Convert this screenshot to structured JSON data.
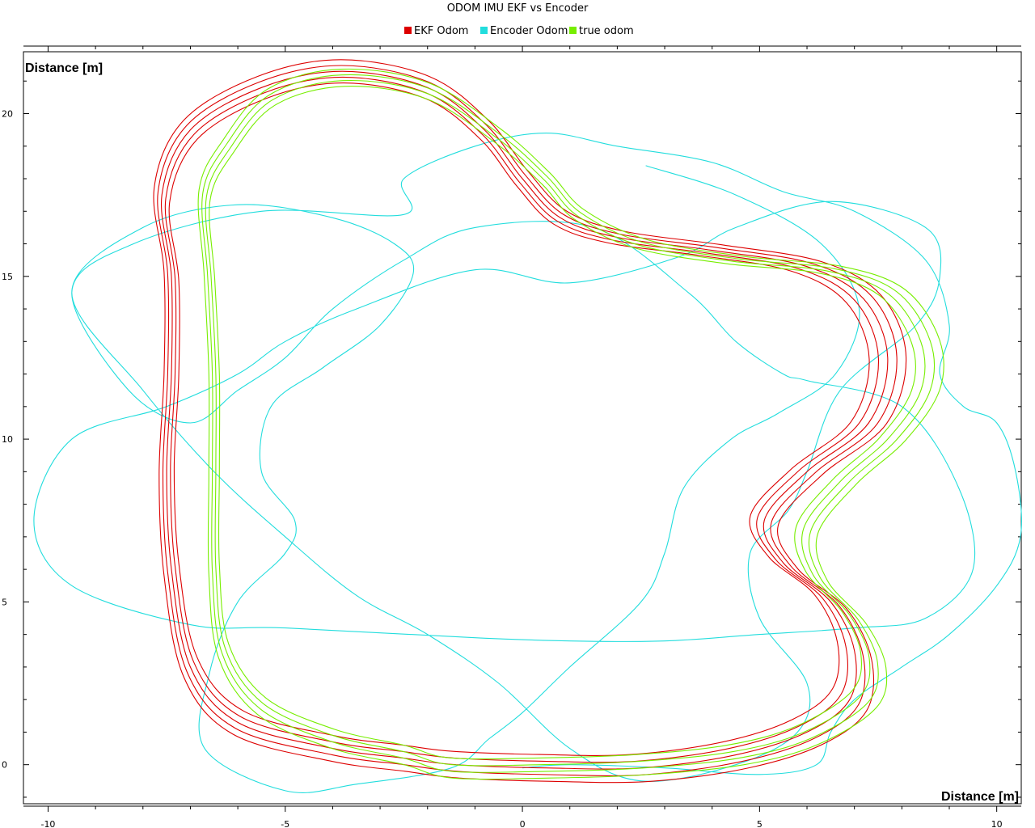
{
  "chart_data": {
    "type": "line",
    "title": "ODOM IMU EKF vs Encoder",
    "xlabel": "Distance [m]",
    "ylabel": "Distance [m]",
    "xlim": [
      -10.4,
      10.5
    ],
    "ylim": [
      -1.2,
      21.9
    ],
    "xticks": [
      -10,
      -5,
      0,
      5,
      10
    ],
    "yticks": [
      0,
      5,
      10,
      15,
      20
    ],
    "grid": false,
    "legend": "top-center",
    "series": [
      {
        "name": "EKF Odom",
        "color": "#dd0000",
        "laps": 5,
        "points": [
          [
            -1.4,
            0.0
          ],
          [
            0.5,
            -0.1
          ],
          [
            2.5,
            -0.1
          ],
          [
            4.5,
            0.3
          ],
          [
            6.0,
            1.0
          ],
          [
            6.9,
            2.0
          ],
          [
            7.0,
            3.5
          ],
          [
            6.5,
            5.0
          ],
          [
            5.5,
            6.2
          ],
          [
            5.1,
            7.5
          ],
          [
            6.0,
            9.0
          ],
          [
            7.3,
            10.5
          ],
          [
            7.7,
            12.5
          ],
          [
            7.2,
            14.3
          ],
          [
            6.0,
            15.3
          ],
          [
            4.0,
            15.8
          ],
          [
            2.0,
            16.2
          ],
          [
            0.8,
            16.8
          ],
          [
            0.0,
            18.0
          ],
          [
            -0.8,
            19.5
          ],
          [
            -2.0,
            20.8
          ],
          [
            -3.8,
            21.3
          ],
          [
            -5.5,
            20.8
          ],
          [
            -7.0,
            19.5
          ],
          [
            -7.6,
            17.5
          ],
          [
            -7.4,
            15.0
          ],
          [
            -7.4,
            12.0
          ],
          [
            -7.5,
            9.0
          ],
          [
            -7.4,
            6.0
          ],
          [
            -7.0,
            3.0
          ],
          [
            -6.0,
            1.3
          ],
          [
            -4.0,
            0.5
          ],
          [
            -2.5,
            0.2
          ],
          [
            -1.4,
            0.0
          ]
        ]
      },
      {
        "name": "Encoder Odom",
        "color": "#22dddd",
        "points": [
          [
            2.6,
            18.4
          ],
          [
            4.5,
            17.5
          ],
          [
            6.3,
            16.0
          ],
          [
            7.1,
            14.0
          ],
          [
            6.6,
            12.0
          ],
          [
            5.4,
            10.8
          ],
          [
            4.4,
            10.0
          ],
          [
            3.4,
            8.5
          ],
          [
            3.0,
            6.5
          ],
          [
            2.5,
            5.0
          ],
          [
            1.0,
            3.0
          ],
          [
            0.0,
            1.6
          ],
          [
            -0.7,
            0.8
          ],
          [
            -1.5,
            -0.1
          ],
          [
            -3.5,
            -0.6
          ],
          [
            -5.0,
            -0.8
          ],
          [
            -6.7,
            0.5
          ],
          [
            -6.6,
            2.8
          ],
          [
            -6.0,
            5.0
          ],
          [
            -5.0,
            6.5
          ],
          [
            -4.8,
            7.5
          ],
          [
            -5.5,
            9.0
          ],
          [
            -5.3,
            11.0
          ],
          [
            -4.2,
            12.2
          ],
          [
            -3.0,
            13.5
          ],
          [
            -2.3,
            15.1
          ],
          [
            -2.7,
            16.0
          ],
          [
            -4.0,
            16.8
          ],
          [
            -6.0,
            17.2
          ],
          [
            -8.0,
            16.5
          ],
          [
            -9.5,
            14.5
          ],
          [
            -8.0,
            11.5
          ],
          [
            -6.5,
            9.0
          ],
          [
            -5.0,
            7.0
          ],
          [
            -3.5,
            5.2
          ],
          [
            -2.0,
            4.0
          ],
          [
            -0.5,
            2.5
          ],
          [
            1.0,
            0.5
          ],
          [
            2.5,
            -0.5
          ],
          [
            4.5,
            0.0
          ],
          [
            5.8,
            1.0
          ],
          [
            6.0,
            2.5
          ],
          [
            5.0,
            4.5
          ],
          [
            4.8,
            6.5
          ],
          [
            5.6,
            7.8
          ],
          [
            6.0,
            9.0
          ],
          [
            6.7,
            11.5
          ],
          [
            8.3,
            13.5
          ],
          [
            8.8,
            15.0
          ],
          [
            8.5,
            16.5
          ],
          [
            6.5,
            17.3
          ],
          [
            4.5,
            16.5
          ],
          [
            3.3,
            15.6
          ],
          [
            1.0,
            14.8
          ],
          [
            -1.0,
            15.2
          ],
          [
            -3.5,
            14.0
          ],
          [
            -5.0,
            13.0
          ],
          [
            -6.0,
            12.0
          ],
          [
            -7.5,
            11.0
          ],
          [
            -9.5,
            10.0
          ],
          [
            -10.3,
            7.5
          ],
          [
            -9.5,
            5.5
          ],
          [
            -7.0,
            4.3
          ],
          [
            -5.0,
            4.2
          ],
          [
            -1.0,
            3.9
          ],
          [
            1.0,
            3.8
          ],
          [
            3.0,
            3.8
          ],
          [
            5.0,
            4.0
          ],
          [
            7.0,
            4.2
          ],
          [
            8.5,
            4.5
          ],
          [
            9.5,
            6.0
          ],
          [
            9.2,
            8.5
          ],
          [
            8.0,
            11.0
          ],
          [
            6.0,
            11.8
          ],
          [
            5.5,
            12.0
          ],
          [
            4.5,
            13.0
          ],
          [
            3.5,
            14.5
          ],
          [
            1.5,
            16.5
          ],
          [
            -1.0,
            16.5
          ],
          [
            -2.5,
            15.5
          ],
          [
            -4.0,
            14.0
          ],
          [
            -5.0,
            12.5
          ],
          [
            -6.0,
            11.5
          ],
          [
            -7.0,
            10.5
          ],
          [
            -8.3,
            11.5
          ],
          [
            -9.5,
            14.5
          ],
          [
            -8.2,
            16.0
          ],
          [
            -5.5,
            17.0
          ],
          [
            -2.5,
            16.9
          ],
          [
            -2.5,
            18.0
          ],
          [
            -1.0,
            19.0
          ],
          [
            0.5,
            19.4
          ],
          [
            2.0,
            19.0
          ],
          [
            4.0,
            18.5
          ],
          [
            5.5,
            17.6
          ],
          [
            7.0,
            17.0
          ],
          [
            8.5,
            15.5
          ],
          [
            9.0,
            13.5
          ],
          [
            8.8,
            12.0
          ],
          [
            9.3,
            11.0
          ],
          [
            10.0,
            10.5
          ],
          [
            10.4,
            9.0
          ],
          [
            10.5,
            7.0
          ],
          [
            10.0,
            5.5
          ],
          [
            9.0,
            4.0
          ],
          [
            8.0,
            3.0
          ],
          [
            7.0,
            2.0
          ],
          [
            6.5,
            1.0
          ],
          [
            6.2,
            0.0
          ],
          [
            5.0,
            -0.3
          ],
          [
            3.0,
            -0.1
          ],
          [
            1.0,
            0.0
          ],
          [
            0.0,
            -0.1
          ]
        ]
      },
      {
        "name": "true odom",
        "color": "#77ee00",
        "laps": 4,
        "points": [
          [
            -1.5,
            -0.1
          ],
          [
            0.5,
            -0.1
          ],
          [
            2.5,
            0.0
          ],
          [
            4.5,
            0.3
          ],
          [
            6.0,
            0.9
          ],
          [
            7.2,
            2.0
          ],
          [
            7.4,
            3.2
          ],
          [
            7.0,
            4.5
          ],
          [
            6.2,
            5.8
          ],
          [
            6.0,
            7.2
          ],
          [
            6.8,
            8.7
          ],
          [
            7.8,
            10.0
          ],
          [
            8.5,
            11.5
          ],
          [
            8.5,
            13.0
          ],
          [
            7.8,
            14.5
          ],
          [
            6.5,
            15.2
          ],
          [
            4.5,
            15.5
          ],
          [
            2.5,
            16.0
          ],
          [
            1.2,
            16.9
          ],
          [
            0.5,
            18.0
          ],
          [
            -0.5,
            19.3
          ],
          [
            -2.0,
            20.7
          ],
          [
            -3.8,
            21.1
          ],
          [
            -5.3,
            20.5
          ],
          [
            -6.2,
            19.0
          ],
          [
            -6.7,
            17.5
          ],
          [
            -6.6,
            15.0
          ],
          [
            -6.5,
            12.0
          ],
          [
            -6.5,
            9.0
          ],
          [
            -6.5,
            6.0
          ],
          [
            -6.3,
            3.5
          ],
          [
            -5.5,
            1.8
          ],
          [
            -4.0,
            0.8
          ],
          [
            -2.5,
            0.3
          ],
          [
            -1.5,
            -0.1
          ]
        ]
      }
    ]
  }
}
